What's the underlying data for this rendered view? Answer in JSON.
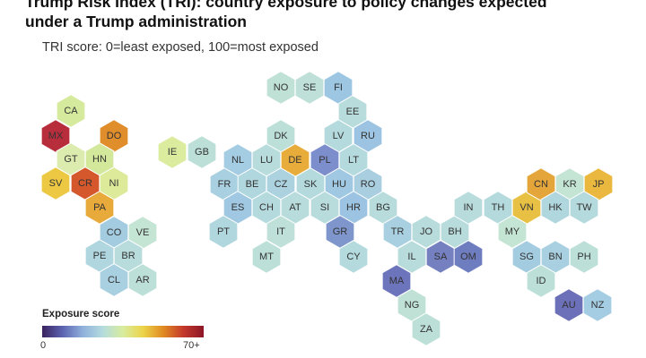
{
  "header": {
    "title_line1": "Trump Risk Index (TRI): country exposure to policy changes expected",
    "title_line2": "under a Trump administration",
    "subtitle": "TRI score: 0=least exposed, 100=most exposed"
  },
  "legend": {
    "title": "Exposure score",
    "min_label": "0",
    "max_label": "70+",
    "gradient": [
      "#3b2260",
      "#5b63b0",
      "#8fb0dc",
      "#b4dcde",
      "#d8ec9e",
      "#ecd44a",
      "#e08a22",
      "#c4382c",
      "#8c1626"
    ]
  },
  "chart_data": {
    "type": "hexmap",
    "title": "Trump Risk Index (TRI): country exposure to policy changes expected under a Trump administration",
    "subtitle": "TRI score: 0=least exposed, 100=most exposed",
    "scale": {
      "label": "Exposure score",
      "min": 0,
      "max": 70,
      "max_label": "70+"
    },
    "countries": [
      {
        "code": "CA",
        "color": "#d6ea9e"
      },
      {
        "code": "MX",
        "color": "#b72d3c"
      },
      {
        "code": "DO",
        "color": "#e08e2c"
      },
      {
        "code": "GT",
        "color": "#dcebae"
      },
      {
        "code": "HN",
        "color": "#d4e89c"
      },
      {
        "code": "SV",
        "color": "#edc842"
      },
      {
        "code": "CR",
        "color": "#d4582c"
      },
      {
        "code": "NI",
        "color": "#dcea9a"
      },
      {
        "code": "PA",
        "color": "#e8aa3a"
      },
      {
        "code": "CO",
        "color": "#a4cce0"
      },
      {
        "code": "VE",
        "color": "#c4e4d4"
      },
      {
        "code": "PE",
        "color": "#b0d6e0"
      },
      {
        "code": "BR",
        "color": "#b8dcdc"
      },
      {
        "code": "CL",
        "color": "#a8d0e0"
      },
      {
        "code": "AR",
        "color": "#bce0d8"
      },
      {
        "code": "IE",
        "color": "#dcec9e"
      },
      {
        "code": "GB",
        "color": "#bce0d8"
      },
      {
        "code": "NO",
        "color": "#c0e2d6"
      },
      {
        "code": "SE",
        "color": "#bee0d8"
      },
      {
        "code": "FI",
        "color": "#9cc6e2"
      },
      {
        "code": "EE",
        "color": "#b8dcdc"
      },
      {
        "code": "DK",
        "color": "#bce0d8"
      },
      {
        "code": "LV",
        "color": "#b4dade"
      },
      {
        "code": "RU",
        "color": "#9cc4e2"
      },
      {
        "code": "NL",
        "color": "#a4cce2"
      },
      {
        "code": "LU",
        "color": "#b8dcdc"
      },
      {
        "code": "DE",
        "color": "#e8ac3a"
      },
      {
        "code": "PL",
        "color": "#7c8ecc"
      },
      {
        "code": "LT",
        "color": "#b4dade"
      },
      {
        "code": "FR",
        "color": "#a8d0e0"
      },
      {
        "code": "BE",
        "color": "#b0d6de"
      },
      {
        "code": "CZ",
        "color": "#acd2e0"
      },
      {
        "code": "SK",
        "color": "#b4dade"
      },
      {
        "code": "HU",
        "color": "#a0c8e2"
      },
      {
        "code": "RO",
        "color": "#a8cee0"
      },
      {
        "code": "ES",
        "color": "#a0c8e2"
      },
      {
        "code": "CH",
        "color": "#b4dade"
      },
      {
        "code": "AT",
        "color": "#b8dcdc"
      },
      {
        "code": "SI",
        "color": "#b8dcdc"
      },
      {
        "code": "HR",
        "color": "#9cc4e2"
      },
      {
        "code": "BG",
        "color": "#b8dcdc"
      },
      {
        "code": "PT",
        "color": "#b0d6de"
      },
      {
        "code": "IT",
        "color": "#bee0d8"
      },
      {
        "code": "GR",
        "color": "#7e96cc"
      },
      {
        "code": "MT",
        "color": "#bce0d8"
      },
      {
        "code": "CY",
        "color": "#b4dade"
      },
      {
        "code": "TR",
        "color": "#a8d0e0"
      },
      {
        "code": "JO",
        "color": "#b8dcdc"
      },
      {
        "code": "BH",
        "color": "#b8dcdc"
      },
      {
        "code": "IL",
        "color": "#b8dcdc"
      },
      {
        "code": "SA",
        "color": "#7480c0"
      },
      {
        "code": "OM",
        "color": "#6e7cc0"
      },
      {
        "code": "MA",
        "color": "#6c74bc"
      },
      {
        "code": "NG",
        "color": "#c0e2d6"
      },
      {
        "code": "ZA",
        "color": "#bce0d8"
      },
      {
        "code": "IN",
        "color": "#b8dcdc"
      },
      {
        "code": "TH",
        "color": "#b4dade"
      },
      {
        "code": "VN",
        "color": "#e8c044"
      },
      {
        "code": "CN",
        "color": "#e4a63a"
      },
      {
        "code": "KR",
        "color": "#c4e4d4"
      },
      {
        "code": "JP",
        "color": "#eab83e"
      },
      {
        "code": "HK",
        "color": "#b0d6de"
      },
      {
        "code": "TW",
        "color": "#b4dade"
      },
      {
        "code": "MY",
        "color": "#c4e4d4"
      },
      {
        "code": "SG",
        "color": "#a4cce0"
      },
      {
        "code": "BN",
        "color": "#a8d0e0"
      },
      {
        "code": "PH",
        "color": "#bce0d8"
      },
      {
        "code": "ID",
        "color": "#bce0d8"
      },
      {
        "code": "AU",
        "color": "#6c70b8"
      },
      {
        "code": "NZ",
        "color": "#a4cce2"
      }
    ]
  }
}
